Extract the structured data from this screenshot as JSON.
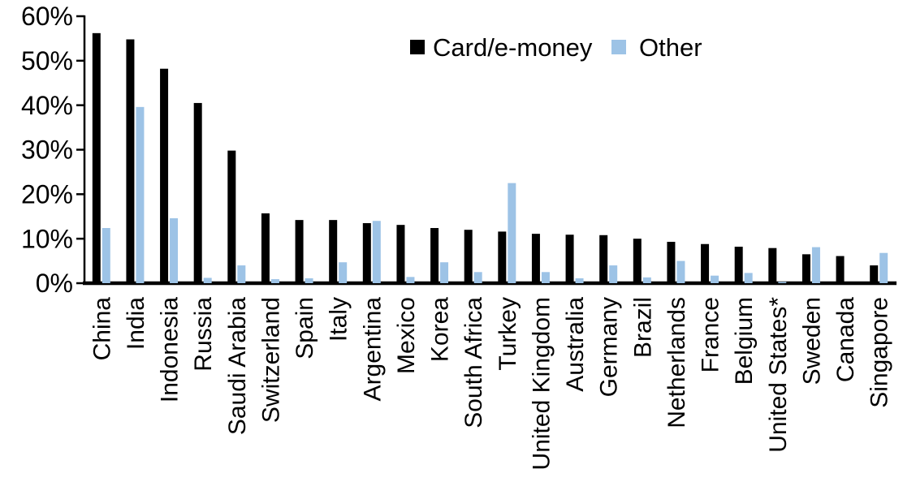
{
  "chart_data": {
    "type": "bar",
    "title": "",
    "xlabel": "",
    "ylabel": "",
    "ylim": [
      0,
      60
    ],
    "ytick_step": 10,
    "ytick_labels": [
      "0%",
      "10%",
      "20%",
      "30%",
      "40%",
      "50%",
      "60%"
    ],
    "grid": false,
    "legend_position": "top-center",
    "categories": [
      "China",
      "India",
      "Indonesia",
      "Russia",
      "Saudi Arabia",
      "Switzerland",
      "Spain",
      "Italy",
      "Argentina",
      "Mexico",
      "Korea",
      "South Africa",
      "Turkey",
      "United Kingdom",
      "Australia",
      "Germany",
      "Brazil",
      "Netherlands",
      "France",
      "Belgium",
      "United States*",
      "Sweden",
      "Canada",
      "Singapore"
    ],
    "series": [
      {
        "name": "Card/e-money",
        "color": "#000000",
        "values": [
          56.2,
          54.8,
          48.2,
          40.5,
          29.8,
          15.7,
          14.2,
          14.2,
          13.5,
          13.1,
          12.4,
          12.0,
          11.6,
          11.1,
          10.9,
          10.8,
          10.0,
          9.3,
          8.8,
          8.2,
          7.9,
          6.5,
          6.1,
          4.0
        ]
      },
      {
        "name": "Other",
        "color": "#9DC3E6",
        "values": [
          12.4,
          39.6,
          14.6,
          1.2,
          4.0,
          0.9,
          1.1,
          4.7,
          14.0,
          1.4,
          4.7,
          2.5,
          22.5,
          2.5,
          1.1,
          4.0,
          1.3,
          5.0,
          1.7,
          2.3,
          0.3,
          8.1,
          0,
          6.8
        ]
      }
    ]
  },
  "colors": {
    "background": "#FFFFFF",
    "axis": "#000000",
    "series_card": "#000000",
    "series_other": "#9DC3E6"
  }
}
